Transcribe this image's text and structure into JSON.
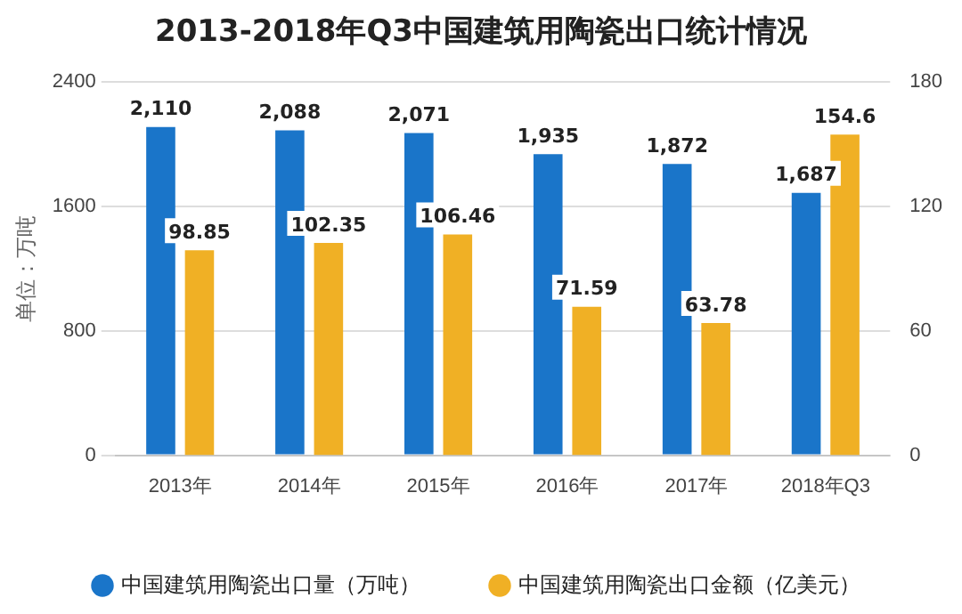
{
  "chart_data": {
    "type": "bar",
    "title": "2013-2018年Q3中国建筑用陶瓷出口统计情况",
    "ylabel": "单位：万吨",
    "categories": [
      "2013年",
      "2014年",
      "2015年",
      "2016年",
      "2017年",
      "2018年Q3"
    ],
    "series": [
      {
        "name": "中国建筑用陶瓷出口量（万吨）",
        "color": "#1a75c9",
        "values": [
          2110,
          2088,
          2071,
          1935,
          1872,
          1687
        ],
        "value_labels": [
          "2,110",
          "2,088",
          "2,071",
          "1,935",
          "1,872",
          "1,687"
        ]
      },
      {
        "name": "中国建筑用陶瓷出口金额（亿美元）",
        "color": "#f0b025",
        "values": [
          98.85,
          102.35,
          106.46,
          71.59,
          63.78,
          154.6
        ],
        "value_labels": [
          "98.85",
          "102.35",
          "106.46",
          "71.59",
          "63.78",
          "154.6"
        ],
        "axis": "y2"
      }
    ],
    "ylim": [
      0,
      2400
    ],
    "yticks": [
      0,
      800,
      1600,
      2400
    ],
    "y2lim": [
      0,
      180
    ],
    "y2ticks": [
      0,
      60,
      120,
      180
    ],
    "grid": "y",
    "legend": "bottom",
    "marker": "circle"
  }
}
